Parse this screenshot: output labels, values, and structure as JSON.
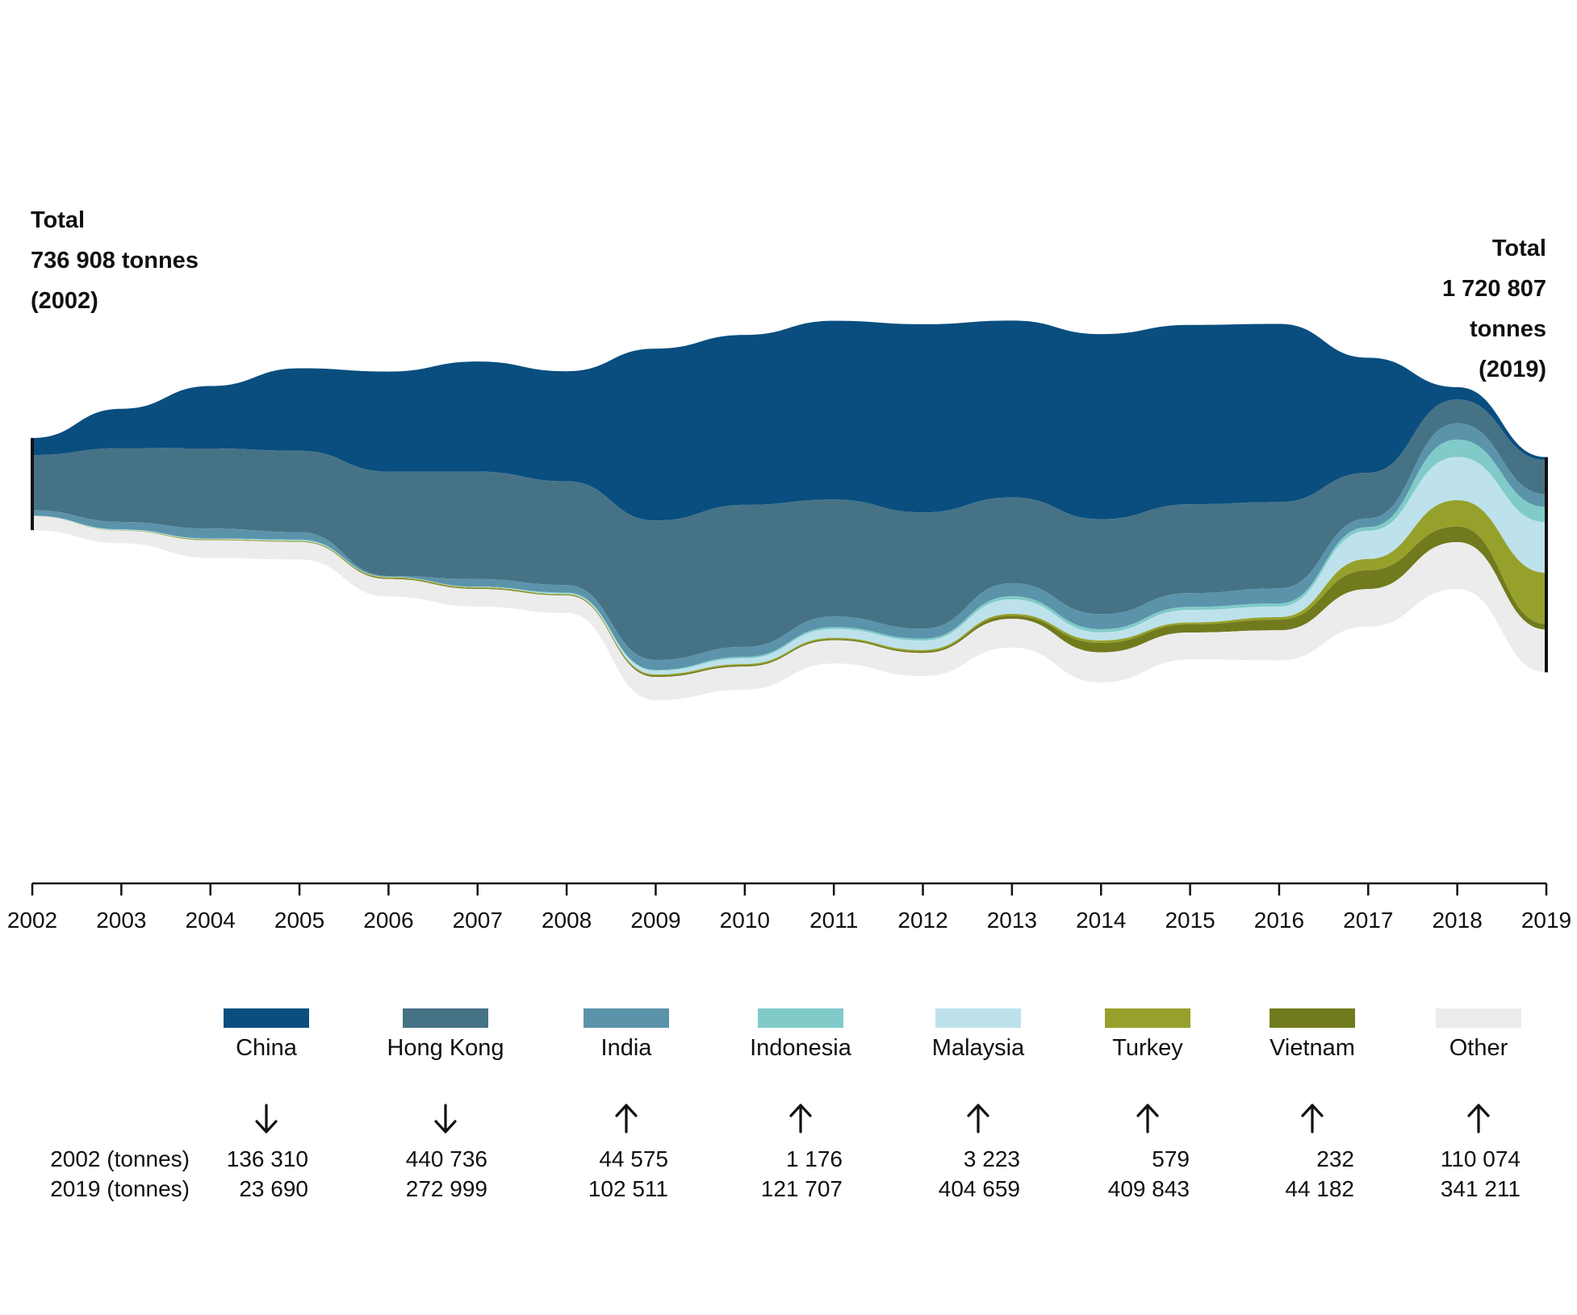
{
  "chart_data": {
    "type": "area",
    "layout": "streamgraph",
    "x": [
      2002,
      2003,
      2004,
      2005,
      2006,
      2007,
      2008,
      2009,
      2010,
      2011,
      2012,
      2013,
      2014,
      2015,
      2016,
      2017,
      2018,
      2019
    ],
    "series": [
      {
        "name": "China",
        "color": "#094e7f",
        "values": [
          136310,
          315000,
          500000,
          660000,
          800000,
          880000,
          880000,
          1375000,
          1360000,
          1430000,
          1505000,
          1415000,
          1480000,
          1435000,
          1425000,
          920000,
          99000,
          23690
        ]
      },
      {
        "name": "Hong Kong",
        "color": "#467286",
        "values": [
          440736,
          590000,
          640000,
          650000,
          835000,
          860000,
          830000,
          1115000,
          1135000,
          935000,
          930000,
          685000,
          760000,
          710000,
          690000,
          365000,
          190000,
          272999
        ]
      },
      {
        "name": "India",
        "color": "#5b93aa",
        "values": [
          44575,
          60000,
          80000,
          60000,
          6000,
          60000,
          60000,
          80000,
          80000,
          85000,
          80000,
          105000,
          120000,
          110000,
          120000,
          70000,
          130000,
          102511
        ]
      },
      {
        "name": "Indonesia",
        "color": "#80cbc9",
        "values": [
          1176,
          2000,
          2000,
          6000,
          2000,
          3000,
          8000,
          6000,
          12000,
          15000,
          15000,
          25000,
          25000,
          25000,
          25000,
          30000,
          140000,
          121707
        ]
      },
      {
        "name": "Malaysia",
        "color": "#bde2ec",
        "values": [
          3223,
          5000,
          4000,
          5000,
          2000,
          2000,
          5000,
          30000,
          45000,
          70000,
          75000,
          115000,
          65000,
          100000,
          85000,
          225000,
          345000,
          404659
        ]
      },
      {
        "name": "Turkey",
        "color": "#96a12c",
        "values": [
          579,
          2000,
          6000,
          6000,
          8000,
          8000,
          5000,
          10000,
          10000,
          10000,
          12000,
          15000,
          20000,
          15000,
          20000,
          90000,
          210000,
          409843
        ]
      },
      {
        "name": "Vietnam",
        "color": "#727a1e",
        "values": [
          232,
          1000,
          2000,
          2000,
          6000,
          6000,
          5000,
          10000,
          10000,
          10000,
          12000,
          25000,
          75000,
          65000,
          85000,
          150000,
          125000,
          44182
        ]
      },
      {
        "name": "Other",
        "color": "#ececec",
        "values": [
          110074,
          100000,
          140000,
          140000,
          140000,
          140000,
          140000,
          185000,
          185000,
          185000,
          185000,
          230000,
          240000,
          215000,
          240000,
          300000,
          375000,
          341211
        ]
      }
    ],
    "grid": false,
    "legend": "bottom",
    "totals": [
      {
        "year": 2002,
        "lines": [
          "Total",
          "736 908 tonnes",
          "(2002)"
        ]
      },
      {
        "year": 2019,
        "lines": [
          "Total",
          "1 720 807",
          "tonnes",
          "(2019)"
        ]
      }
    ],
    "summary": {
      "row_labels": [
        "2002 (tonnes)",
        "2019 (tonnes)"
      ],
      "entries": [
        {
          "name": "China",
          "trend": "down",
          "v2002": "136 310",
          "v2019": "23 690"
        },
        {
          "name": "Hong Kong",
          "trend": "down",
          "v2002": "440 736",
          "v2019": "272 999"
        },
        {
          "name": "India",
          "trend": "up",
          "v2002": "44 575",
          "v2019": "102 511"
        },
        {
          "name": "Indonesia",
          "trend": "up",
          "v2002": "1 176",
          "v2019": "121 707"
        },
        {
          "name": "Malaysia",
          "trend": "up",
          "v2002": "3 223",
          "v2019": "404 659"
        },
        {
          "name": "Turkey",
          "trend": "up",
          "v2002": "579",
          "v2019": "409 843"
        },
        {
          "name": "Vietnam",
          "trend": "up",
          "v2002": "232",
          "v2019": "44 182"
        },
        {
          "name": "Other",
          "trend": "up",
          "v2002": "110 074",
          "v2019": "341 211"
        }
      ]
    }
  }
}
